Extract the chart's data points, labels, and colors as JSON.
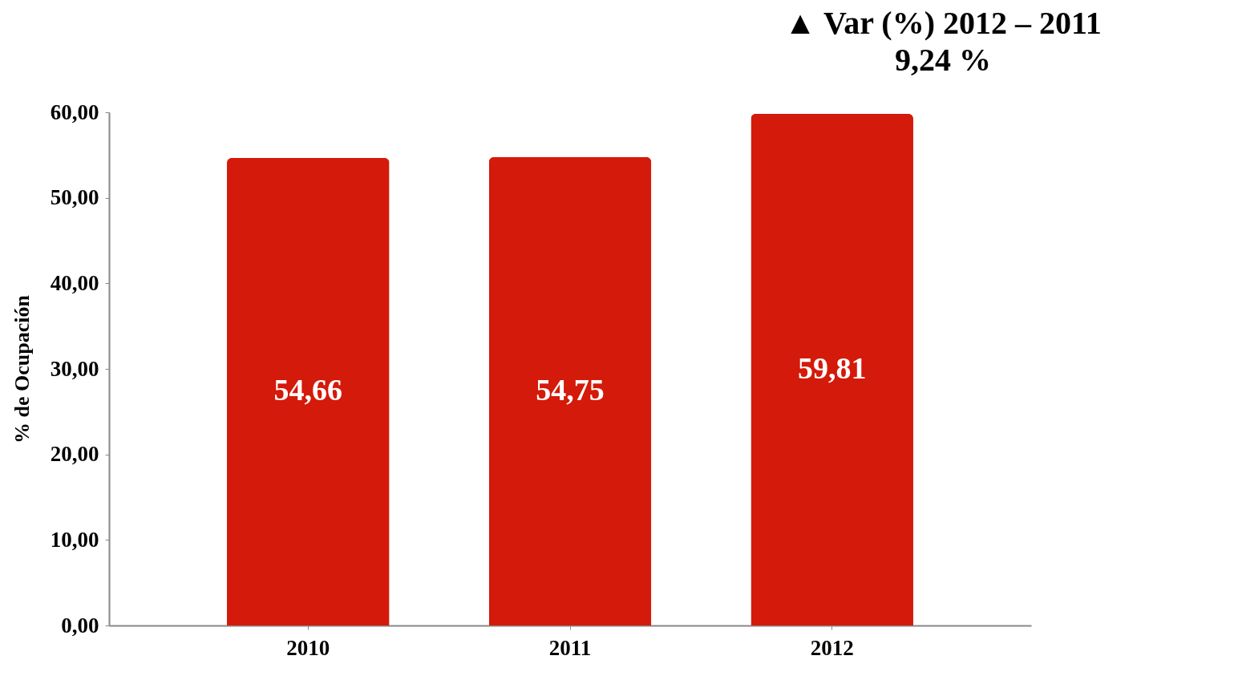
{
  "chart_data": {
    "type": "bar",
    "ylabel": "% de Ocupación",
    "categories": [
      "2010",
      "2011",
      "2012"
    ],
    "values": [
      54.66,
      54.75,
      59.81
    ],
    "value_labels": [
      "54,66",
      "54,75",
      "59,81"
    ],
    "color": "#d41a0a",
    "ylim": [
      0,
      60
    ],
    "yticks": [
      {
        "value": 0,
        "label": "0,00"
      },
      {
        "value": 10,
        "label": "10,00"
      },
      {
        "value": 20,
        "label": "20,00"
      },
      {
        "value": 30,
        "label": "30,00"
      },
      {
        "value": 40,
        "label": "40,00"
      },
      {
        "value": 50,
        "label": "50,00"
      },
      {
        "value": 60,
        "label": "60,00"
      }
    ],
    "grid": false,
    "annotations": [
      "▲ Var (%) 2012 – 2011",
      "9,24 %"
    ]
  }
}
